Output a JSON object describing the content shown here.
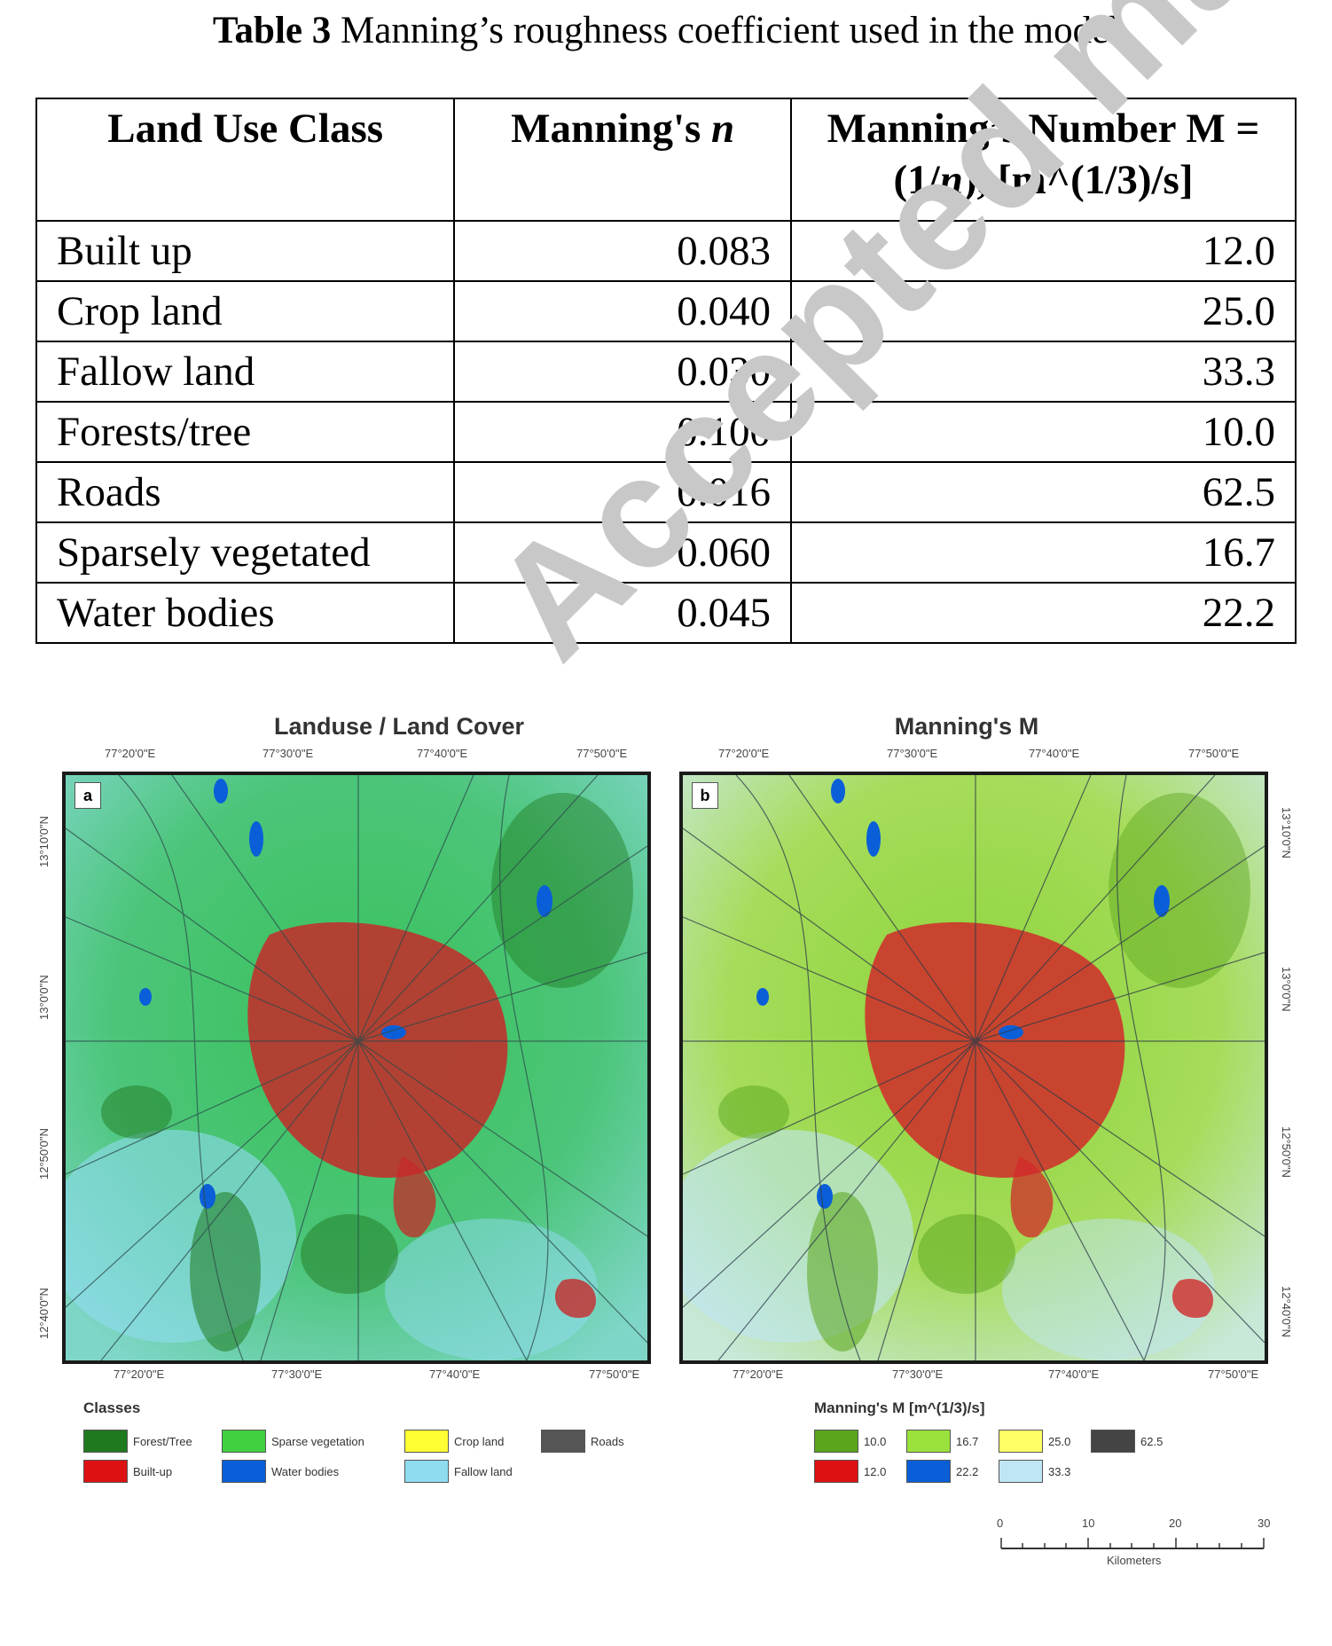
{
  "watermark": "Accepted manuscript",
  "caption": {
    "label": "Table 3",
    "text": "Manning’s roughness coefficient used in the model"
  },
  "table": {
    "headers": {
      "col1": "Land Use Class",
      "col2_text": "Manning's ",
      "col2_var": "n",
      "col3_line1": "Manning’s Number M =",
      "col3_line2_a": "(1/",
      "col3_line2_var": "n",
      "col3_line2_b": "), [m^(1/3)/s]"
    },
    "rows": [
      {
        "cls": "Built up",
        "n": "0.083",
        "m": "12.0"
      },
      {
        "cls": "Crop land",
        "n": "0.040",
        "m": "25.0"
      },
      {
        "cls": "Fallow land",
        "n": "0.030",
        "m": "33.3"
      },
      {
        "cls": "Forests/tree",
        "n": "0.100",
        "m": "10.0"
      },
      {
        "cls": "Roads",
        "n": "0.016",
        "m": "62.5"
      },
      {
        "cls": "Sparsely vegetated",
        "n": "0.060",
        "m": "16.7"
      },
      {
        "cls": "Water bodies",
        "n": "0.045",
        "m": "22.2"
      }
    ]
  },
  "figure": {
    "map_a": {
      "title": "Landuse / Land Cover",
      "label": "a"
    },
    "map_b": {
      "title": "Manning's M",
      "label": "b"
    },
    "lon_ticks": [
      "77°20'0\"E",
      "77°30'0\"E",
      "77°40'0\"E",
      "77°50'0\"E"
    ],
    "lat_ticks": [
      "13°10'0\"N",
      "13°0'0\"N",
      "12°50'0\"N",
      "12°40'0\"N"
    ],
    "legend_a": {
      "title": "Classes",
      "items": [
        {
          "label": "Forest/Tree",
          "color": "#1f7a1f"
        },
        {
          "label": "Sparse vegetation",
          "color": "#3fd13f"
        },
        {
          "label": "Crop land",
          "color": "#ffff33"
        },
        {
          "label": "Roads",
          "color": "#555555"
        },
        {
          "label": "Built-up",
          "color": "#dd1111"
        },
        {
          "label": "Water bodies",
          "color": "#0a5fd8"
        },
        {
          "label": "Fallow land",
          "color": "#8fdcf0"
        }
      ]
    },
    "legend_b": {
      "title": "Manning's M [m^(1/3)/s]",
      "items": [
        {
          "label": "10.0",
          "color": "#5aa51c"
        },
        {
          "label": "16.7",
          "color": "#9be13c"
        },
        {
          "label": "25.0",
          "color": "#ffff66"
        },
        {
          "label": "62.5",
          "color": "#444444"
        },
        {
          "label": "12.0",
          "color": "#dd1111"
        },
        {
          "label": "22.2",
          "color": "#0a5fd8"
        },
        {
          "label": "33.3",
          "color": "#bfe6f5"
        }
      ]
    },
    "scale": {
      "ticks": [
        "0",
        "10",
        "20",
        "30"
      ],
      "unit": "Kilometers"
    }
  }
}
